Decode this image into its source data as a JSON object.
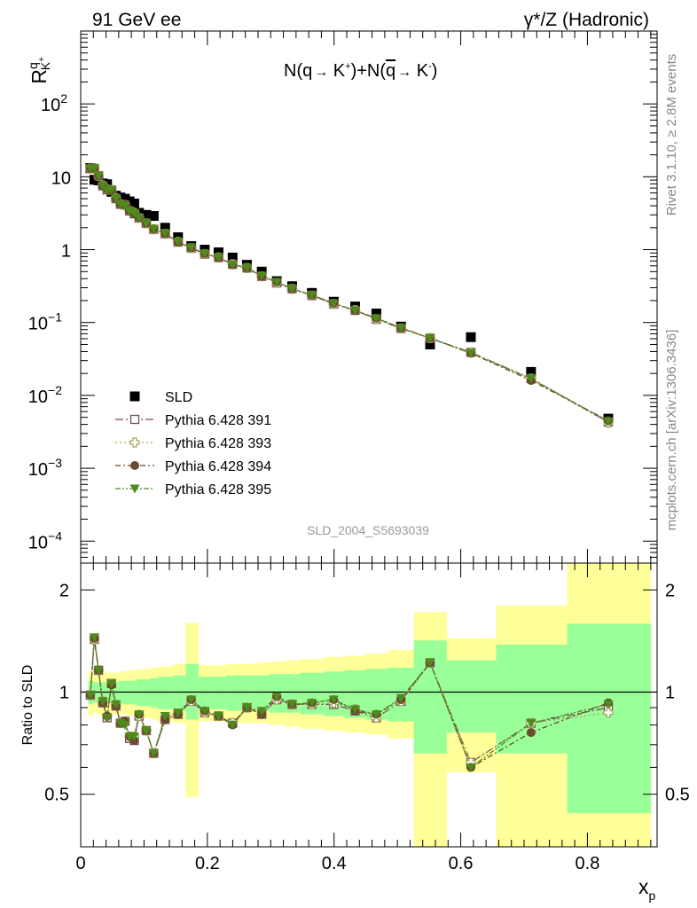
{
  "header": {
    "left": "91 GeV ee",
    "right": "γ*/Z (Hadronic)"
  },
  "side_labels": {
    "rivet": "Rivet 3.1.10, ≥ 2.8M events",
    "mcplots": "mcplots.cern.ch [arXiv:1306.3436]"
  },
  "colors": {
    "sld": "#000000",
    "p391": "#7b4a5c",
    "p393": "#a3a35a",
    "p394": "#6b4a2e",
    "p395": "#4e8a1c",
    "band_inner": "#99ff99",
    "band_outer": "#ffff99"
  },
  "chart_data": [
    {
      "type": "scatter",
      "panel": "main",
      "title": "N(q→ K⁺)+N(q̄→ K⁻)",
      "title_parts": {
        "a": "N(q",
        "b": " K",
        "c": "+",
        "d": ")+N(",
        "e": "q",
        "f": " K",
        "g": "-",
        "h": ")"
      },
      "ylabel": {
        "main": "R",
        "sup": "q",
        "sub": "K",
        "subsup": "+"
      },
      "xlabel": {
        "main": "x",
        "sub": "p"
      },
      "yscale": "log",
      "ylim": [
        5e-05,
        1000
      ],
      "xlim": [
        0,
        0.91
      ],
      "yticks": [
        {
          "v": 0.0001,
          "base": "10",
          "exp": "−4"
        },
        {
          "v": 0.001,
          "base": "10",
          "exp": "−3"
        },
        {
          "v": 0.01,
          "base": "10",
          "exp": "−2"
        },
        {
          "v": 0.1,
          "base": "10",
          "exp": "−1"
        },
        {
          "v": 1,
          "base": "1",
          "exp": ""
        },
        {
          "v": 10,
          "base": "10",
          "exp": ""
        },
        {
          "v": 100,
          "base": "10",
          "exp": "2"
        }
      ],
      "watermark": "SLD_2004_S5693039",
      "legend_position": "lower-left",
      "legend": [
        "SLD",
        "Pythia 6.428 391",
        "Pythia 6.428 393",
        "Pythia 6.428 394",
        "Pythia 6.428 395"
      ],
      "x": [
        0.0152,
        0.0216,
        0.0282,
        0.0349,
        0.0417,
        0.0486,
        0.0556,
        0.0627,
        0.0699,
        0.0772,
        0.0846,
        0.0921,
        0.1035,
        0.1153,
        0.1333,
        0.1537,
        0.1745,
        0.1958,
        0.2176,
        0.2398,
        0.2625,
        0.2858,
        0.3095,
        0.3338,
        0.365,
        0.3995,
        0.4333,
        0.4668,
        0.5057,
        0.5516,
        0.616,
        0.711,
        0.833
      ],
      "series": [
        {
          "name": "SLD",
          "marker": "square",
          "values": [
            13.2,
            9.1,
            8.9,
            8.1,
            7.9,
            6.2,
            5.5,
            5.2,
            5.0,
            4.6,
            4.3,
            3.2,
            3.0,
            2.9,
            2.0,
            1.48,
            1.12,
            1.0,
            0.92,
            0.78,
            0.62,
            0.5,
            0.37,
            0.315,
            0.255,
            0.193,
            0.166,
            0.133,
            0.088,
            0.05,
            0.063,
            0.021,
            0.0048
          ]
        },
        {
          "name": "Pythia 6.428 391",
          "marker": "open-square",
          "values": [
            12.9,
            13.0,
            10.3,
            7.5,
            6.6,
            6.6,
            5.0,
            4.2,
            4.1,
            3.4,
            3.1,
            2.72,
            2.3,
            1.9,
            1.65,
            1.27,
            1.05,
            0.87,
            0.78,
            0.63,
            0.56,
            0.43,
            0.35,
            0.29,
            0.235,
            0.179,
            0.147,
            0.111,
            0.083,
            0.061,
            0.039,
            0.017,
            0.0043
          ]
        },
        {
          "name": "Pythia 6.428 393",
          "marker": "open-cross",
          "values": [
            12.9,
            13.0,
            10.3,
            7.6,
            6.7,
            6.6,
            5.1,
            4.2,
            4.1,
            3.4,
            3.2,
            2.72,
            2.3,
            1.9,
            1.65,
            1.28,
            1.05,
            0.87,
            0.78,
            0.63,
            0.56,
            0.43,
            0.35,
            0.29,
            0.235,
            0.18,
            0.148,
            0.111,
            0.083,
            0.061,
            0.039,
            0.017,
            0.0042
          ]
        },
        {
          "name": "Pythia 6.428 394",
          "marker": "circle",
          "values": [
            13.0,
            13.1,
            10.3,
            7.5,
            6.7,
            6.5,
            5.0,
            4.2,
            4.1,
            3.4,
            3.1,
            2.74,
            2.31,
            1.92,
            1.66,
            1.27,
            1.06,
            0.88,
            0.78,
            0.62,
            0.56,
            0.43,
            0.36,
            0.29,
            0.238,
            0.184,
            0.146,
            0.115,
            0.084,
            0.061,
            0.038,
            0.016,
            0.0045
          ]
        },
        {
          "name": "Pythia 6.428 395",
          "marker": "triangle-down",
          "values": [
            13.0,
            13.2,
            10.3,
            7.6,
            6.6,
            6.6,
            5.1,
            4.2,
            4.0,
            3.4,
            3.2,
            2.74,
            2.31,
            1.92,
            1.69,
            1.29,
            1.06,
            0.88,
            0.78,
            0.62,
            0.56,
            0.44,
            0.36,
            0.29,
            0.238,
            0.183,
            0.147,
            0.114,
            0.085,
            0.061,
            0.038,
            0.017,
            0.0044
          ]
        }
      ]
    },
    {
      "type": "line",
      "panel": "ratio",
      "ylabel": "Ratio to SLD",
      "ylim": [
        0.35,
        2.4
      ],
      "xlim": [
        0,
        0.91
      ],
      "yscale": "log",
      "yticks": [
        0.5,
        1,
        2
      ],
      "xticks": [
        {
          "v": 0,
          "label": "0"
        },
        {
          "v": 0.2,
          "label": "0.2"
        },
        {
          "v": 0.4,
          "label": "0.4"
        },
        {
          "v": 0.6,
          "label": "0.6"
        },
        {
          "v": 0.8,
          "label": "0.8"
        }
      ],
      "reference_line": 1,
      "bands": {
        "edges": [
          0.012,
          0.019,
          0.025,
          0.032,
          0.039,
          0.046,
          0.053,
          0.06,
          0.067,
          0.074,
          0.081,
          0.088,
          0.097,
          0.11,
          0.122,
          0.146,
          0.166,
          0.186,
          0.206,
          0.23,
          0.252,
          0.274,
          0.298,
          0.322,
          0.346,
          0.384,
          0.416,
          0.45,
          0.484,
          0.526,
          0.578,
          0.656,
          0.768,
          0.9
        ],
        "inner_lo": [
          0.92,
          0.93,
          0.93,
          0.93,
          0.93,
          0.93,
          0.93,
          0.92,
          0.92,
          0.92,
          0.92,
          0.91,
          0.91,
          0.9,
          0.89,
          0.88,
          0.83,
          0.89,
          0.89,
          0.88,
          0.88,
          0.88,
          0.87,
          0.87,
          0.86,
          0.85,
          0.84,
          0.83,
          0.82,
          0.66,
          0.76,
          0.66,
          0.44,
          0.3
        ],
        "inner_hi": [
          1.08,
          1.07,
          1.07,
          1.07,
          1.07,
          1.07,
          1.07,
          1.08,
          1.08,
          1.08,
          1.08,
          1.09,
          1.09,
          1.1,
          1.11,
          1.12,
          1.21,
          1.11,
          1.11,
          1.12,
          1.12,
          1.12,
          1.13,
          1.13,
          1.14,
          1.15,
          1.16,
          1.17,
          1.18,
          1.42,
          1.24,
          1.38,
          1.59,
          2.0
        ],
        "outer_lo": [
          0.85,
          0.87,
          0.86,
          0.85,
          0.86,
          0.86,
          0.86,
          0.86,
          0.86,
          0.85,
          0.85,
          0.84,
          0.84,
          0.83,
          0.82,
          0.81,
          0.49,
          0.82,
          0.82,
          0.81,
          0.81,
          0.81,
          0.8,
          0.79,
          0.78,
          0.77,
          0.76,
          0.75,
          0.73,
          0.3,
          0.58,
          0.3,
          0.3,
          0.3
        ],
        "outer_hi": [
          1.15,
          1.13,
          1.14,
          1.15,
          1.14,
          1.14,
          1.14,
          1.15,
          1.15,
          1.16,
          1.16,
          1.17,
          1.17,
          1.18,
          1.19,
          1.21,
          1.6,
          1.2,
          1.2,
          1.21,
          1.21,
          1.22,
          1.23,
          1.24,
          1.25,
          1.27,
          1.28,
          1.3,
          1.33,
          1.72,
          1.44,
          1.8,
          2.4,
          2.4
        ]
      },
      "series": [
        {
          "name": "Pythia 6.428 391",
          "values": [
            0.98,
            1.43,
            1.16,
            0.93,
            0.84,
            1.06,
            0.91,
            0.81,
            0.82,
            0.73,
            0.72,
            0.85,
            0.77,
            0.66,
            0.83,
            0.86,
            0.94,
            0.87,
            0.85,
            0.81,
            0.9,
            0.86,
            0.95,
            0.92,
            0.92,
            0.92,
            0.88,
            0.84,
            0.94,
            1.22,
            0.62,
            0.81,
            0.9
          ]
        },
        {
          "name": "Pythia 6.428 393",
          "values": [
            0.98,
            1.43,
            1.16,
            0.94,
            0.85,
            1.06,
            0.92,
            0.81,
            0.82,
            0.74,
            0.74,
            0.85,
            0.77,
            0.66,
            0.83,
            0.86,
            0.94,
            0.87,
            0.85,
            0.81,
            0.9,
            0.86,
            0.95,
            0.92,
            0.92,
            0.93,
            0.89,
            0.84,
            0.94,
            1.22,
            0.62,
            0.81,
            0.87
          ]
        },
        {
          "name": "Pythia 6.428 394",
          "values": [
            0.98,
            1.44,
            1.16,
            0.93,
            0.85,
            1.05,
            0.91,
            0.81,
            0.82,
            0.74,
            0.72,
            0.86,
            0.77,
            0.66,
            0.83,
            0.86,
            0.95,
            0.88,
            0.85,
            0.8,
            0.9,
            0.86,
            0.97,
            0.92,
            0.93,
            0.95,
            0.88,
            0.86,
            0.95,
            1.22,
            0.6,
            0.76,
            0.93
          ]
        },
        {
          "name": "Pythia 6.428 395",
          "values": [
            0.98,
            1.45,
            1.16,
            0.94,
            0.84,
            1.06,
            0.92,
            0.81,
            0.8,
            0.74,
            0.74,
            0.86,
            0.77,
            0.66,
            0.85,
            0.87,
            0.95,
            0.88,
            0.85,
            0.8,
            0.9,
            0.88,
            0.97,
            0.92,
            0.93,
            0.95,
            0.89,
            0.86,
            0.96,
            1.22,
            0.6,
            0.81,
            0.92
          ]
        }
      ]
    }
  ]
}
